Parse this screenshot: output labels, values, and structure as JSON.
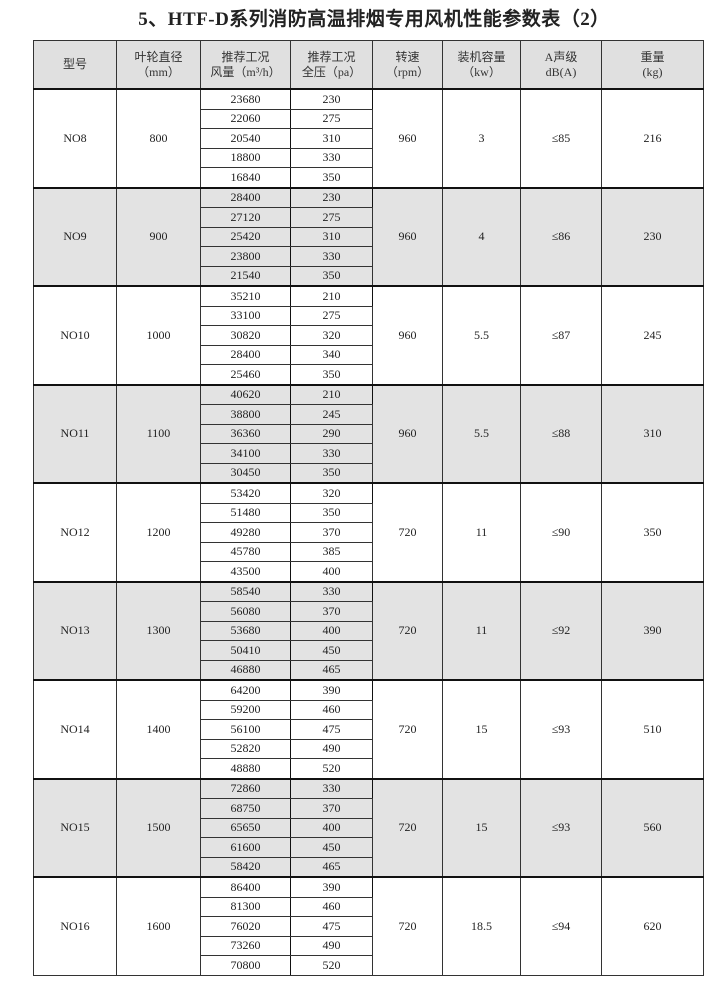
{
  "title": "5、HTF-D系列消防高温排烟专用风机性能参数表（2）",
  "headers": [
    {
      "l1": "型号",
      "l2": ""
    },
    {
      "l1": "叶轮直径",
      "l2": "（mm）"
    },
    {
      "l1": "推荐工况",
      "l2": "风量（m³/h）"
    },
    {
      "l1": "推荐工况",
      "l2": "全压（pa）"
    },
    {
      "l1": "转速",
      "l2": "（rpm）"
    },
    {
      "l1": "装机容量",
      "l2": "（kw）"
    },
    {
      "l1": "A声级",
      "l2": "dB(A)"
    },
    {
      "l1": "重量",
      "l2": "(kg)"
    }
  ],
  "rows": [
    {
      "model": "NO8",
      "diameter": "800",
      "airflow": [
        "23680",
        "22060",
        "20540",
        "18800",
        "16840"
      ],
      "pressure": [
        "230",
        "275",
        "310",
        "330",
        "350"
      ],
      "speed": "960",
      "power": "3",
      "noise": "≤85",
      "weight": "216"
    },
    {
      "model": "NO9",
      "diameter": "900",
      "airflow": [
        "28400",
        "27120",
        "25420",
        "23800",
        "21540"
      ],
      "pressure": [
        "230",
        "275",
        "310",
        "330",
        "350"
      ],
      "speed": "960",
      "power": "4",
      "noise": "≤86",
      "weight": "230"
    },
    {
      "model": "NO10",
      "diameter": "1000",
      "airflow": [
        "35210",
        "33100",
        "30820",
        "28400",
        "25460"
      ],
      "pressure": [
        "210",
        "275",
        "320",
        "340",
        "350"
      ],
      "speed": "960",
      "power": "5.5",
      "noise": "≤87",
      "weight": "245"
    },
    {
      "model": "NO11",
      "diameter": "1100",
      "airflow": [
        "40620",
        "38800",
        "36360",
        "34100",
        "30450"
      ],
      "pressure": [
        "210",
        "245",
        "290",
        "330",
        "350"
      ],
      "speed": "960",
      "power": "5.5",
      "noise": "≤88",
      "weight": "310"
    },
    {
      "model": "NO12",
      "diameter": "1200",
      "airflow": [
        "53420",
        "51480",
        "49280",
        "45780",
        "43500"
      ],
      "pressure": [
        "320",
        "350",
        "370",
        "385",
        "400"
      ],
      "speed": "720",
      "power": "11",
      "noise": "≤90",
      "weight": "350"
    },
    {
      "model": "NO13",
      "diameter": "1300",
      "airflow": [
        "58540",
        "56080",
        "53680",
        "50410",
        "46880"
      ],
      "pressure": [
        "330",
        "370",
        "400",
        "450",
        "465"
      ],
      "speed": "720",
      "power": "11",
      "noise": "≤92",
      "weight": "390"
    },
    {
      "model": "NO14",
      "diameter": "1400",
      "airflow": [
        "64200",
        "59200",
        "56100",
        "52820",
        "48880"
      ],
      "pressure": [
        "390",
        "460",
        "475",
        "490",
        "520"
      ],
      "speed": "720",
      "power": "15",
      "noise": "≤93",
      "weight": "510"
    },
    {
      "model": "NO15",
      "diameter": "1500",
      "airflow": [
        "72860",
        "68750",
        "65650",
        "61600",
        "58420"
      ],
      "pressure": [
        "330",
        "370",
        "400",
        "450",
        "465"
      ],
      "speed": "720",
      "power": "15",
      "noise": "≤93",
      "weight": "560"
    },
    {
      "model": "NO16",
      "diameter": "1600",
      "airflow": [
        "86400",
        "81300",
        "76020",
        "73260",
        "70800"
      ],
      "pressure": [
        "390",
        "460",
        "475",
        "490",
        "520"
      ],
      "speed": "720",
      "power": "18.5",
      "noise": "≤94",
      "weight": "620"
    }
  ],
  "colors": {
    "shaded_row": "#e3e3e3",
    "header_bg": "#e0e0e0",
    "border": "#333333"
  }
}
